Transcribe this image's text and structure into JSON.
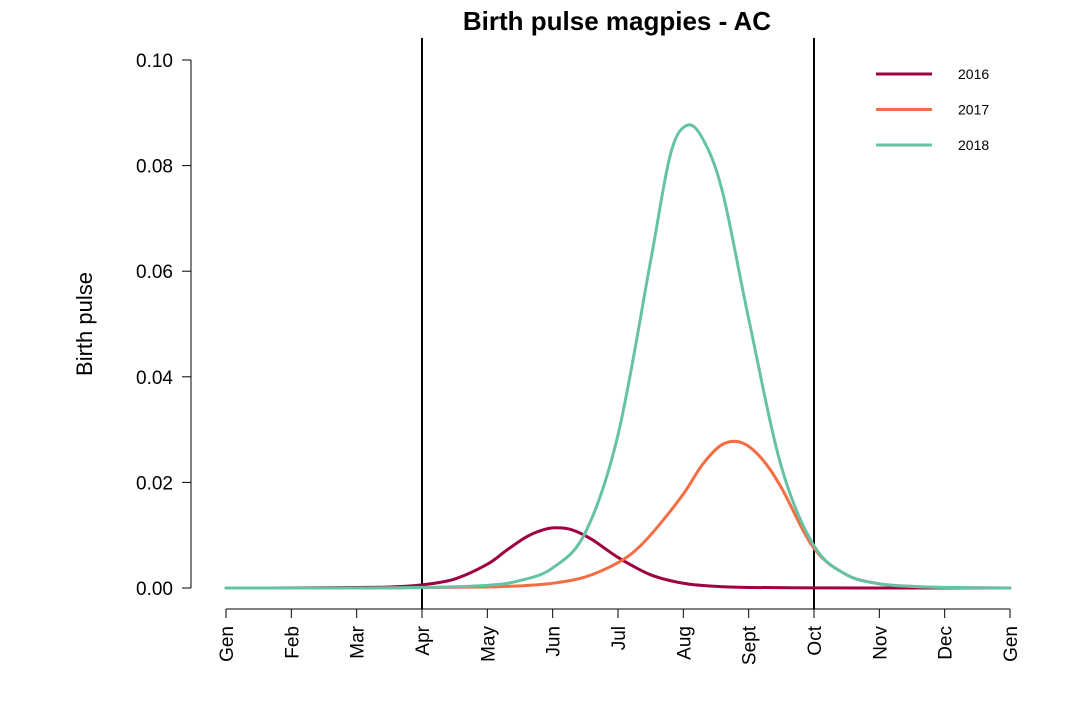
{
  "chart_data": {
    "type": "line",
    "title": "Birth pulse magpies - AC",
    "xlabel": "",
    "ylabel": "Birth pulse",
    "xlim": [
      0,
      12
    ],
    "ylim": [
      0,
      0.1
    ],
    "x_ticks": [
      {
        "value": 0,
        "label": "Gen"
      },
      {
        "value": 1,
        "label": "Feb"
      },
      {
        "value": 2,
        "label": "Mar"
      },
      {
        "value": 3,
        "label": "Apr"
      },
      {
        "value": 4,
        "label": "May"
      },
      {
        "value": 5,
        "label": "Jun"
      },
      {
        "value": 6,
        "label": "Jul"
      },
      {
        "value": 7,
        "label": "Aug"
      },
      {
        "value": 8,
        "label": "Sept"
      },
      {
        "value": 9,
        "label": "Oct"
      },
      {
        "value": 10,
        "label": "Nov"
      },
      {
        "value": 11,
        "label": "Dec"
      },
      {
        "value": 12,
        "label": "Gen"
      }
    ],
    "y_ticks": [
      {
        "value": 0.0,
        "label": "0.00"
      },
      {
        "value": 0.02,
        "label": "0.02"
      },
      {
        "value": 0.04,
        "label": "0.04"
      },
      {
        "value": 0.06,
        "label": "0.06"
      },
      {
        "value": 0.08,
        "label": "0.08"
      },
      {
        "value": 0.1,
        "label": "0.10"
      }
    ],
    "vertical_lines": [
      3,
      9
    ],
    "legend_position": "top-right",
    "grid": false,
    "series": [
      {
        "name": "2016",
        "color": "#9E0142",
        "x": [
          0,
          1,
          2,
          2.5,
          3,
          3.5,
          4,
          4.3,
          4.6,
          4.85,
          5.05,
          5.3,
          5.6,
          6,
          6.5,
          7,
          7.5,
          8,
          9,
          10,
          11,
          12
        ],
        "y": [
          0,
          2e-05,
          0.0001,
          0.0002,
          0.0006,
          0.0017,
          0.0045,
          0.0072,
          0.0097,
          0.011,
          0.0114,
          0.011,
          0.0092,
          0.0058,
          0.0025,
          0.0009,
          0.0003,
          0.0001,
          3e-05,
          1e-05,
          0,
          0
        ]
      },
      {
        "name": "2017",
        "color": "#F46D43",
        "x": [
          0,
          2,
          3,
          4,
          4.5,
          5,
          5.5,
          6,
          6.3,
          6.6,
          7,
          7.3,
          7.6,
          7.9,
          8.2,
          8.5,
          9,
          9.5,
          10,
          10.5,
          11,
          12
        ],
        "y": [
          0,
          0,
          0.0001,
          0.0002,
          0.0004,
          0.0009,
          0.0021,
          0.0048,
          0.0075,
          0.0115,
          0.0178,
          0.0235,
          0.0272,
          0.0275,
          0.0245,
          0.019,
          0.0075,
          0.0025,
          0.0008,
          0.0003,
          0.0001,
          0
        ]
      },
      {
        "name": "2018",
        "color": "#66C2A5",
        "x": [
          0,
          2,
          3,
          4,
          4.5,
          5,
          5.5,
          6,
          6.5,
          6.8,
          7.05,
          7.3,
          7.6,
          8,
          8.5,
          9,
          9.5,
          10,
          10.5,
          11,
          12
        ],
        "y": [
          0,
          0,
          0.0001,
          0.0005,
          0.0014,
          0.0038,
          0.0105,
          0.029,
          0.062,
          0.082,
          0.0876,
          0.085,
          0.075,
          0.051,
          0.023,
          0.008,
          0.0025,
          0.0008,
          0.0003,
          0.0001,
          0
        ]
      }
    ]
  }
}
